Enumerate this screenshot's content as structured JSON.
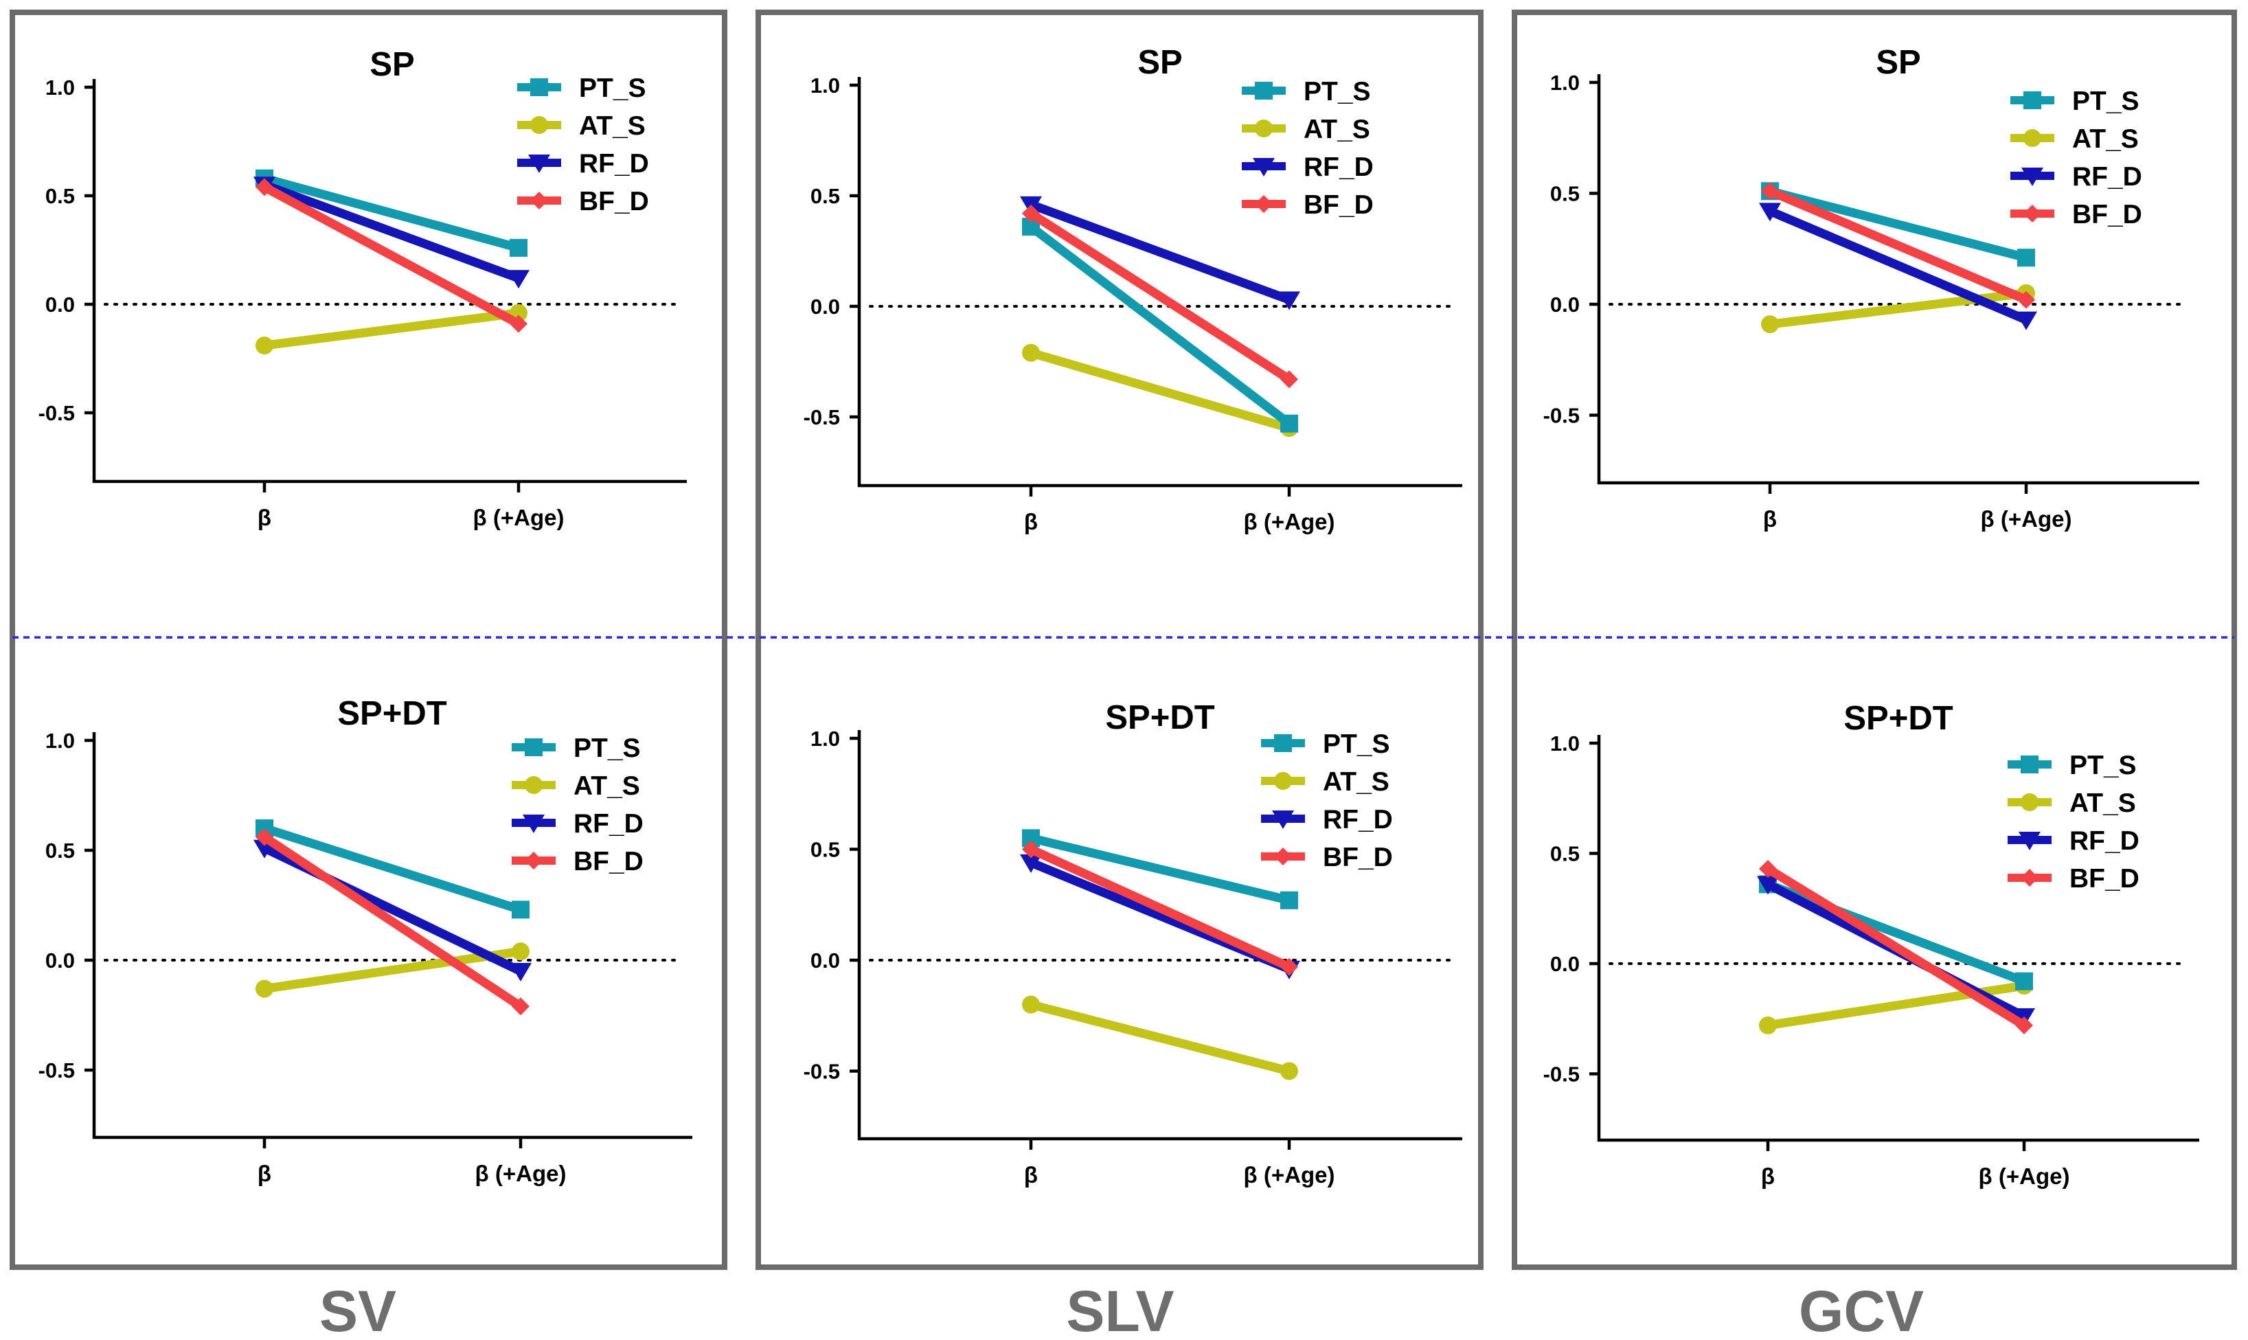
{
  "colors": {
    "PT_S": "#139aaf",
    "AT_S": "#c3c31a",
    "RF_D": "#1515b5",
    "BF_D": "#f24245",
    "frame": "#6b6b6b",
    "divider": "#2a2ae0",
    "panel_label": "#6e6e6e"
  },
  "panels": [
    {
      "label": "SV"
    },
    {
      "label": "SLV"
    },
    {
      "label": "GCV"
    }
  ],
  "chart_data": [
    {
      "type": "line",
      "panel": "SV",
      "title": "SP",
      "categories": [
        "β",
        "β (+Age)"
      ],
      "ylim": [
        -0.8,
        1.0
      ],
      "yticks": [
        "1.0",
        "0.5",
        "0.0",
        "-0.5"
      ],
      "series": [
        {
          "name": "PT_S",
          "marker": "square",
          "values": [
            0.58,
            0.26
          ]
        },
        {
          "name": "AT_S",
          "marker": "circle",
          "values": [
            -0.19,
            -0.04
          ]
        },
        {
          "name": "RF_D",
          "marker": "triangle-down",
          "values": [
            0.55,
            0.12
          ]
        },
        {
          "name": "BF_D",
          "marker": "diamond",
          "values": [
            0.54,
            -0.09
          ]
        }
      ]
    },
    {
      "type": "line",
      "panel": "SLV",
      "title": "SP",
      "categories": [
        "β",
        "β (+Age)"
      ],
      "ylim": [
        -0.8,
        1.0
      ],
      "yticks": [
        "1.0",
        "0.5",
        "0.0",
        "-0.5"
      ],
      "series": [
        {
          "name": "PT_S",
          "marker": "square",
          "values": [
            0.36,
            -0.53
          ]
        },
        {
          "name": "AT_S",
          "marker": "circle",
          "values": [
            -0.21,
            -0.55
          ]
        },
        {
          "name": "RF_D",
          "marker": "triangle-down",
          "values": [
            0.46,
            0.03
          ]
        },
        {
          "name": "BF_D",
          "marker": "diamond",
          "values": [
            0.42,
            -0.33
          ]
        }
      ]
    },
    {
      "type": "line",
      "panel": "GCV",
      "title": "SP",
      "categories": [
        "β",
        "β (+Age)"
      ],
      "ylim": [
        -0.8,
        1.0
      ],
      "yticks": [
        "1.0",
        "0.5",
        "0.0",
        "-0.5"
      ],
      "series": [
        {
          "name": "PT_S",
          "marker": "square",
          "values": [
            0.51,
            0.21
          ]
        },
        {
          "name": "AT_S",
          "marker": "circle",
          "values": [
            -0.09,
            0.05
          ]
        },
        {
          "name": "RF_D",
          "marker": "triangle-down",
          "values": [
            0.42,
            -0.07
          ]
        },
        {
          "name": "BF_D",
          "marker": "diamond",
          "values": [
            0.51,
            0.02
          ]
        }
      ]
    },
    {
      "type": "line",
      "panel": "SV",
      "title": "SP+DT",
      "categories": [
        "β",
        "β (+Age)"
      ],
      "ylim": [
        -0.8,
        1.0
      ],
      "yticks": [
        "1.0",
        "0.5",
        "0.0",
        "-0.5"
      ],
      "series": [
        {
          "name": "PT_S",
          "marker": "square",
          "values": [
            0.6,
            0.23
          ]
        },
        {
          "name": "AT_S",
          "marker": "circle",
          "values": [
            -0.13,
            0.04
          ]
        },
        {
          "name": "RF_D",
          "marker": "triangle-down",
          "values": [
            0.51,
            -0.05
          ]
        },
        {
          "name": "BF_D",
          "marker": "diamond",
          "values": [
            0.56,
            -0.21
          ]
        }
      ]
    },
    {
      "type": "line",
      "panel": "SLV",
      "title": "SP+DT",
      "categories": [
        "β",
        "β (+Age)"
      ],
      "ylim": [
        -0.8,
        1.0
      ],
      "yticks": [
        "1.0",
        "0.5",
        "0.0",
        "-0.5"
      ],
      "series": [
        {
          "name": "PT_S",
          "marker": "square",
          "values": [
            0.55,
            0.27
          ]
        },
        {
          "name": "AT_S",
          "marker": "circle",
          "values": [
            -0.2,
            -0.5
          ]
        },
        {
          "name": "RF_D",
          "marker": "triangle-down",
          "values": [
            0.44,
            -0.04
          ]
        },
        {
          "name": "BF_D",
          "marker": "diamond",
          "values": [
            0.5,
            -0.03
          ]
        }
      ]
    },
    {
      "type": "line",
      "panel": "GCV",
      "title": "SP+DT",
      "categories": [
        "β",
        "β (+Age)"
      ],
      "ylim": [
        -0.8,
        1.0
      ],
      "yticks": [
        "1.0",
        "0.5",
        "0.0",
        "-0.5"
      ],
      "series": [
        {
          "name": "PT_S",
          "marker": "square",
          "values": [
            0.36,
            -0.08
          ]
        },
        {
          "name": "AT_S",
          "marker": "circle",
          "values": [
            -0.28,
            -0.1
          ]
        },
        {
          "name": "RF_D",
          "marker": "triangle-down",
          "values": [
            0.36,
            -0.24
          ]
        },
        {
          "name": "BF_D",
          "marker": "diamond",
          "values": [
            0.43,
            -0.28
          ]
        }
      ]
    }
  ]
}
